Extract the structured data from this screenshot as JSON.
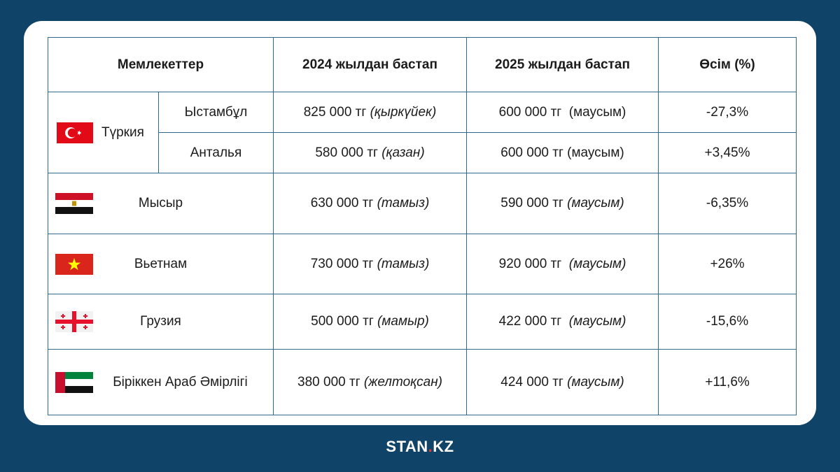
{
  "header": {
    "col_states": "Мемлекеттер",
    "col_2024": "2024 жылдан бастап",
    "col_2025": "2025 жылдан бастап",
    "col_growth": "Өсім (%)"
  },
  "turkey": {
    "name": "Түркия",
    "flag_icon": "turkey-flag-icon",
    "cities": [
      {
        "name": "Ыстамбұл",
        "price_2024": "825 000 тг",
        "month_2024": "(қыркүйек)",
        "price_2025": "600 000 тг",
        "month_2025": "(маусым)",
        "growth": "-27,3%"
      },
      {
        "name": "Анталья",
        "price_2024": "580 000 тг",
        "month_2024": "(қазан)",
        "price_2025": "600 000 тг",
        "month_2025": "(маусым)",
        "growth": "+3,45%"
      }
    ]
  },
  "countries": [
    {
      "name": "Мысыр",
      "flag_icon": "egypt-flag-icon",
      "price_2024": "630 000 тг",
      "month_2024": "(тамыз)",
      "price_2025": "590 000 тг",
      "month_2025": "(маусым)",
      "growth": "-6,35%"
    },
    {
      "name": "Вьетнам",
      "flag_icon": "vietnam-flag-icon",
      "price_2024": "730 000 тг",
      "month_2024": "(тамыз)",
      "price_2025": "920 000 тг",
      "month_2025": "(маусым)",
      "growth": "+26%"
    },
    {
      "name": "Грузия",
      "flag_icon": "georgia-flag-icon",
      "price_2024": "500 000 тг",
      "month_2024": "(мамыр)",
      "price_2025": "422 000 тг",
      "month_2025": "(маусым)",
      "growth": "-15,6%"
    },
    {
      "name": "Біріккен Араб Әмірлігі",
      "flag_icon": "uae-flag-icon",
      "price_2024": "380 000 тг",
      "month_2024": "(желтоқсан)",
      "price_2025": "424 000 тг",
      "month_2025": "(маусым)",
      "growth": "+11,6%"
    }
  ],
  "logo": {
    "part1": "STAN",
    "dot": ".",
    "part2": "KZ"
  },
  "colors": {
    "background": "#0f4468",
    "border": "#2e6a8c",
    "logo_accent": "#e53935"
  }
}
